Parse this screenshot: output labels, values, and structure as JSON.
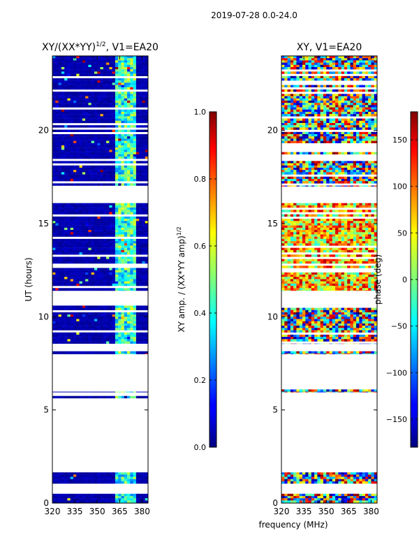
{
  "suptitle": "2019-07-28 0.0-24.0",
  "chart_data": [
    {
      "type": "heatmap",
      "title_prefix": "XY/(XX*YY)",
      "title_sup": "1/2",
      "title_suffix": ", V1=EA20",
      "xlabel": "",
      "ylabel": "UT (hours)",
      "xlim": [
        320,
        384
      ],
      "ylim": [
        0,
        24
      ],
      "xticks": [
        "320",
        "335",
        "350",
        "365",
        "380"
      ],
      "xtick_values": [
        320,
        335,
        350,
        365,
        380
      ],
      "yticks": [
        "0",
        "5",
        "10",
        "15",
        "20"
      ],
      "ytick_values": [
        0,
        5,
        10,
        15,
        20
      ],
      "colorbar": {
        "label_prefix": "XY amp. / (XX*YY amp)",
        "label_sup": "1/2",
        "range": [
          0.0,
          1.0
        ],
        "ticks": [
          "0.0",
          "0.2",
          "0.4",
          "0.6",
          "0.8",
          "1.0"
        ],
        "tick_values": [
          0.0,
          0.2,
          0.4,
          0.6,
          0.8,
          1.0
        ]
      },
      "data_bands_hours": [
        [
          0.0,
          0.5
        ],
        [
          1.05,
          1.65
        ],
        [
          5.55,
          5.75
        ],
        [
          5.95,
          6.1
        ],
        [
          8.0,
          8.15
        ],
        [
          8.55,
          10.6
        ],
        [
          11.4,
          16.1
        ],
        [
          17.0,
          24.0
        ]
      ]
    },
    {
      "type": "heatmap",
      "title": "XY, V1=EA20",
      "xlabel": "frequency (MHz)",
      "ylabel": "",
      "xlim": [
        320,
        384
      ],
      "ylim": [
        0,
        24
      ],
      "xticks": [
        "320",
        "335",
        "350",
        "365",
        "380"
      ],
      "xtick_values": [
        320,
        335,
        350,
        365,
        380
      ],
      "yticks": [
        "0",
        "5",
        "10",
        "15",
        "20"
      ],
      "ytick_values": [
        0,
        5,
        10,
        15,
        20
      ],
      "colorbar": {
        "label": "phase (deg)",
        "range": [
          -180,
          180
        ],
        "ticks": [
          "−150",
          "−100",
          "−50",
          "0",
          "50",
          "100",
          "150"
        ],
        "tick_values": [
          -150,
          -100,
          -50,
          0,
          50,
          100,
          150
        ]
      },
      "data_bands_hours": [
        [
          0.0,
          0.5
        ],
        [
          1.05,
          1.65
        ],
        [
          5.55,
          5.75
        ],
        [
          5.95,
          6.1
        ],
        [
          8.0,
          8.15
        ],
        [
          8.55,
          10.6
        ],
        [
          11.4,
          16.1
        ],
        [
          17.0,
          24.0
        ]
      ]
    }
  ]
}
